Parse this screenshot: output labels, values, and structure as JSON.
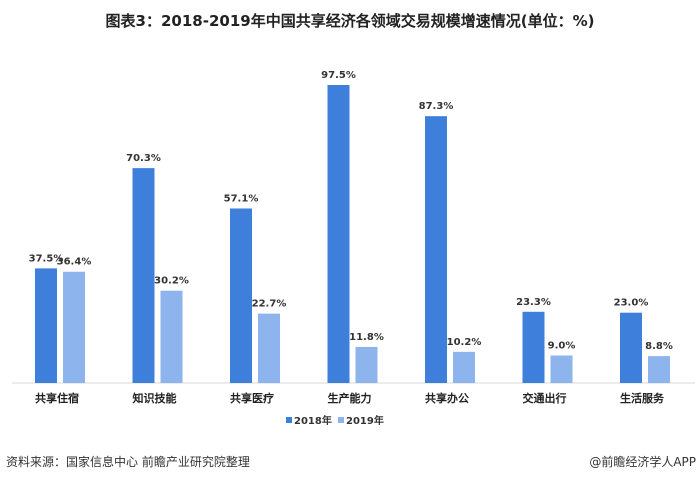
{
  "chart_data": {
    "type": "bar",
    "title": "图表3：2018-2019年中国共享经济各领域交易规模增速情况(单位：%)",
    "categories": [
      "共享住宿",
      "知识技能",
      "共享医疗",
      "生产能力",
      "共享办公",
      "交通出行",
      "生活服务"
    ],
    "series": [
      {
        "name": "2018年",
        "values": [
          37.5,
          70.3,
          57.1,
          97.5,
          87.3,
          23.3,
          23.0
        ],
        "color": "#3f7fdc"
      },
      {
        "name": "2019年",
        "values": [
          36.4,
          30.2,
          22.7,
          11.8,
          10.2,
          9.0,
          8.8
        ],
        "color": "#8db4ec"
      }
    ],
    "ylim": [
      0,
      100
    ],
    "grid": false,
    "legend": "bottom",
    "data_label_suffix": "%"
  },
  "footer": {
    "source": "资料来源：国家信息中心 前瞻产业研究院整理",
    "credit": "@前瞻经济学人APP"
  }
}
